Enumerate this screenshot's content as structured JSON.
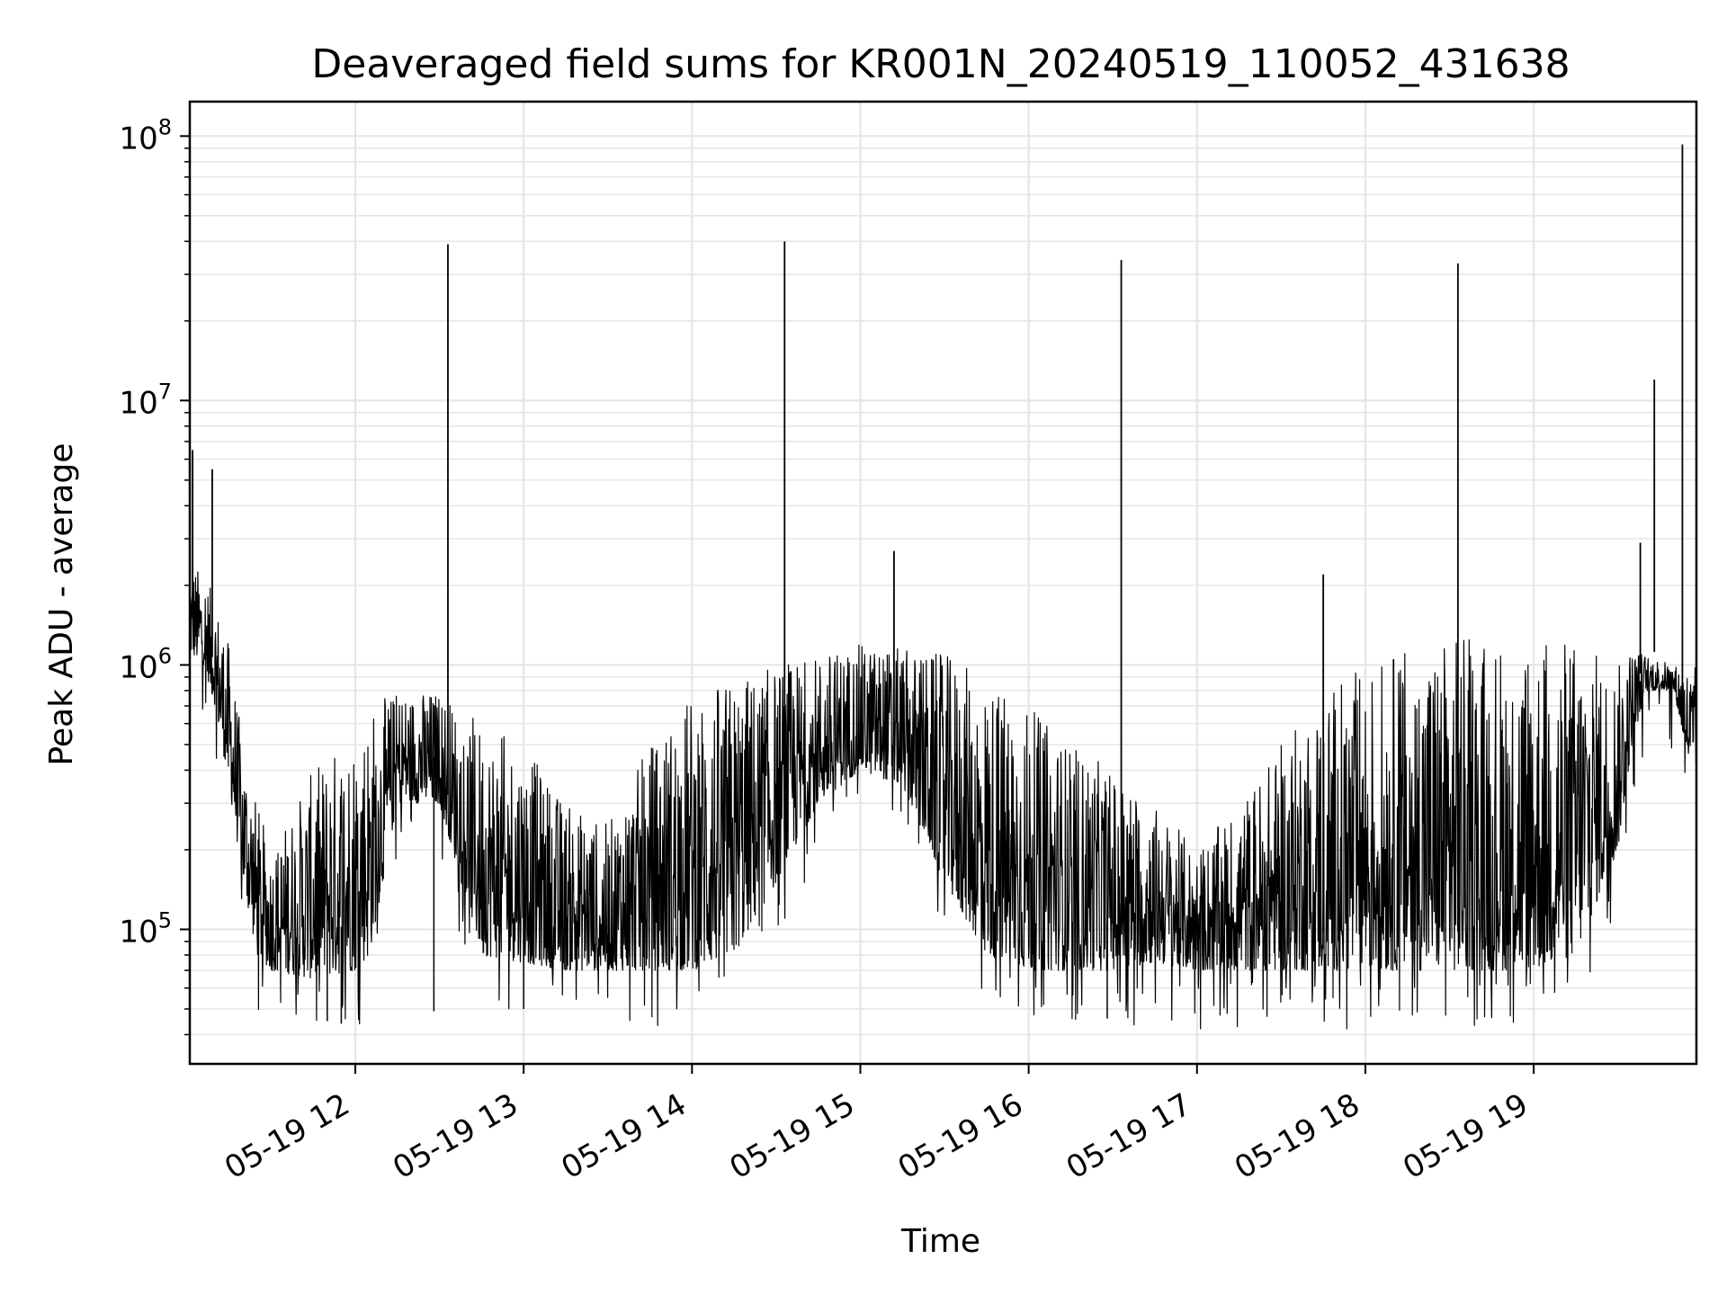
{
  "chart_data": {
    "type": "line",
    "title": "Deaveraged field sums for KR001N_20240519_110052_431638",
    "xlabel": "Time",
    "ylabel": "Peak ADU - average",
    "yscale": "log",
    "ylim": [
      31000,
      135000000
    ],
    "xlim": [
      "05-19 11:01",
      "05-19 19:58"
    ],
    "grid": "both-major-and-minor",
    "line_color": "#000000",
    "grid_color": "#e6e6e6",
    "x_ticks": [
      {
        "label": "05-19 12",
        "t": "05-19 12:00"
      },
      {
        "label": "05-19 13",
        "t": "05-19 13:00"
      },
      {
        "label": "05-19 14",
        "t": "05-19 14:00"
      },
      {
        "label": "05-19 15",
        "t": "05-19 15:00"
      },
      {
        "label": "05-19 16",
        "t": "05-19 16:00"
      },
      {
        "label": "05-19 17",
        "t": "05-19 17:00"
      },
      {
        "label": "05-19 18",
        "t": "05-19 18:00"
      },
      {
        "label": "05-19 19",
        "t": "05-19 19:00"
      }
    ],
    "y_ticks": [
      {
        "value": 100000,
        "base": "10",
        "exp": "5"
      },
      {
        "value": 1000000,
        "base": "10",
        "exp": "6"
      },
      {
        "value": 10000000,
        "base": "10",
        "exp": "7"
      },
      {
        "value": 100000000,
        "base": "10",
        "exp": "8"
      }
    ],
    "series": [
      {
        "envelope": {
          "t": [
            "05-19 11:01",
            "05-19 11:06",
            "05-19 11:10",
            "05-19 11:15",
            "05-19 11:20",
            "05-19 11:25",
            "05-19 11:30",
            "05-19 11:45",
            "05-19 12:00",
            "05-19 12:05",
            "05-19 12:15",
            "05-19 12:30",
            "05-19 12:45",
            "05-19 13:00",
            "05-19 13:15",
            "05-19 13:30",
            "05-19 13:45",
            "05-19 14:00",
            "05-19 14:15",
            "05-19 14:30",
            "05-19 14:45",
            "05-19 15:00",
            "05-19 15:15",
            "05-19 15:30",
            "05-19 15:45",
            "05-19 16:00",
            "05-19 16:15",
            "05-19 16:30",
            "05-19 16:45",
            "05-19 17:00",
            "05-19 17:15",
            "05-19 17:30",
            "05-19 17:45",
            "05-19 18:00",
            "05-19 18:15",
            "05-19 18:30",
            "05-19 18:45",
            "05-19 19:00",
            "05-19 19:15",
            "05-19 19:30",
            "05-19 19:35",
            "05-19 19:40",
            "05-19 19:50",
            "05-19 19:58"
          ],
          "low": [
            1100000,
            1000000,
            700000,
            350000,
            150000,
            80000,
            70000,
            65000,
            70000,
            80000,
            300000,
            300000,
            80000,
            75000,
            70000,
            70000,
            70000,
            70000,
            80000,
            150000,
            300000,
            400000,
            350000,
            150000,
            80000,
            70000,
            70000,
            70000,
            75000,
            70000,
            70000,
            70000,
            70000,
            70000,
            70000,
            70000,
            70000,
            70000,
            80000,
            200000,
            500000,
            800000,
            800000,
            300000
          ],
          "high": [
            2500000,
            2200000,
            1800000,
            1200000,
            500000,
            300000,
            200000,
            400000,
            600000,
            700000,
            800000,
            800000,
            600000,
            500000,
            300000,
            250000,
            500000,
            800000,
            900000,
            1000000,
            1100000,
            1200000,
            1150000,
            1100000,
            900000,
            700000,
            500000,
            400000,
            300000,
            200000,
            300000,
            500000,
            800000,
            1000000,
            1200000,
            1300000,
            1300000,
            1300000,
            1300000,
            1000000,
            1200000,
            1100000,
            1000000,
            1000000
          ]
        },
        "spikes": [
          {
            "t": "05-19 11:02",
            "y": 6500000
          },
          {
            "t": "05-19 11:09",
            "y": 5500000
          },
          {
            "t": "05-19 12:33",
            "y": 39000000
          },
          {
            "t": "05-19 14:33",
            "y": 40000000
          },
          {
            "t": "05-19 15:12",
            "y": 2700000
          },
          {
            "t": "05-19 16:33",
            "y": 34000000
          },
          {
            "t": "05-19 17:45",
            "y": 2200000
          },
          {
            "t": "05-19 18:33",
            "y": 33000000
          },
          {
            "t": "05-19 19:38",
            "y": 2900000
          },
          {
            "t": "05-19 19:43",
            "y": 12000000
          },
          {
            "t": "05-19 19:53",
            "y": 93000000
          }
        ],
        "min_points": [
          {
            "t": "05-19 11:50",
            "y": 45000
          },
          {
            "t": "05-19 11:55",
            "y": 44000
          },
          {
            "t": "05-19 12:28",
            "y": 49000
          },
          {
            "t": "05-19 13:00",
            "y": 50000
          },
          {
            "t": "05-19 16:28",
            "y": 46000
          }
        ]
      }
    ]
  }
}
